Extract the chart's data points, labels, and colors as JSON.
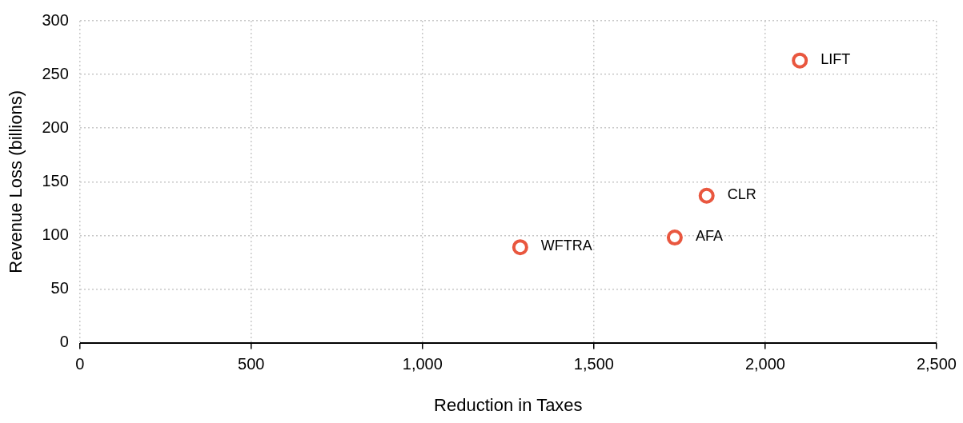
{
  "chart_data": {
    "type": "scatter",
    "xlabel": "Reduction in Taxes",
    "ylabel": "Revenue Loss (billions)",
    "series": [
      {
        "color": "#e9573f",
        "x": [
          1285,
          1736,
          1829,
          2101
        ],
        "values": [
          89,
          98,
          137,
          263
        ]
      }
    ],
    "annotations": [
      {
        "text": "WFTRA",
        "x": 1285,
        "y": 89
      },
      {
        "text": "AFA",
        "x": 1736,
        "y": 98
      },
      {
        "text": "CLR",
        "x": 1829,
        "y": 137
      },
      {
        "text": "LIFT",
        "x": 2101,
        "y": 263
      }
    ],
    "xlim": [
      0,
      2500
    ],
    "xticks": [
      0,
      500,
      {
        "value": 1000,
        "label": "1,000"
      },
      {
        "value": 1500,
        "label": "1,500"
      },
      {
        "value": 2000,
        "label": "2,000"
      },
      {
        "value": 2500,
        "label": "2,500"
      }
    ],
    "ylim": [
      0,
      300
    ],
    "yticks": [
      0,
      50,
      100,
      150,
      200,
      250,
      300
    ],
    "grid": true,
    "legend": false,
    "marker": "circle"
  }
}
